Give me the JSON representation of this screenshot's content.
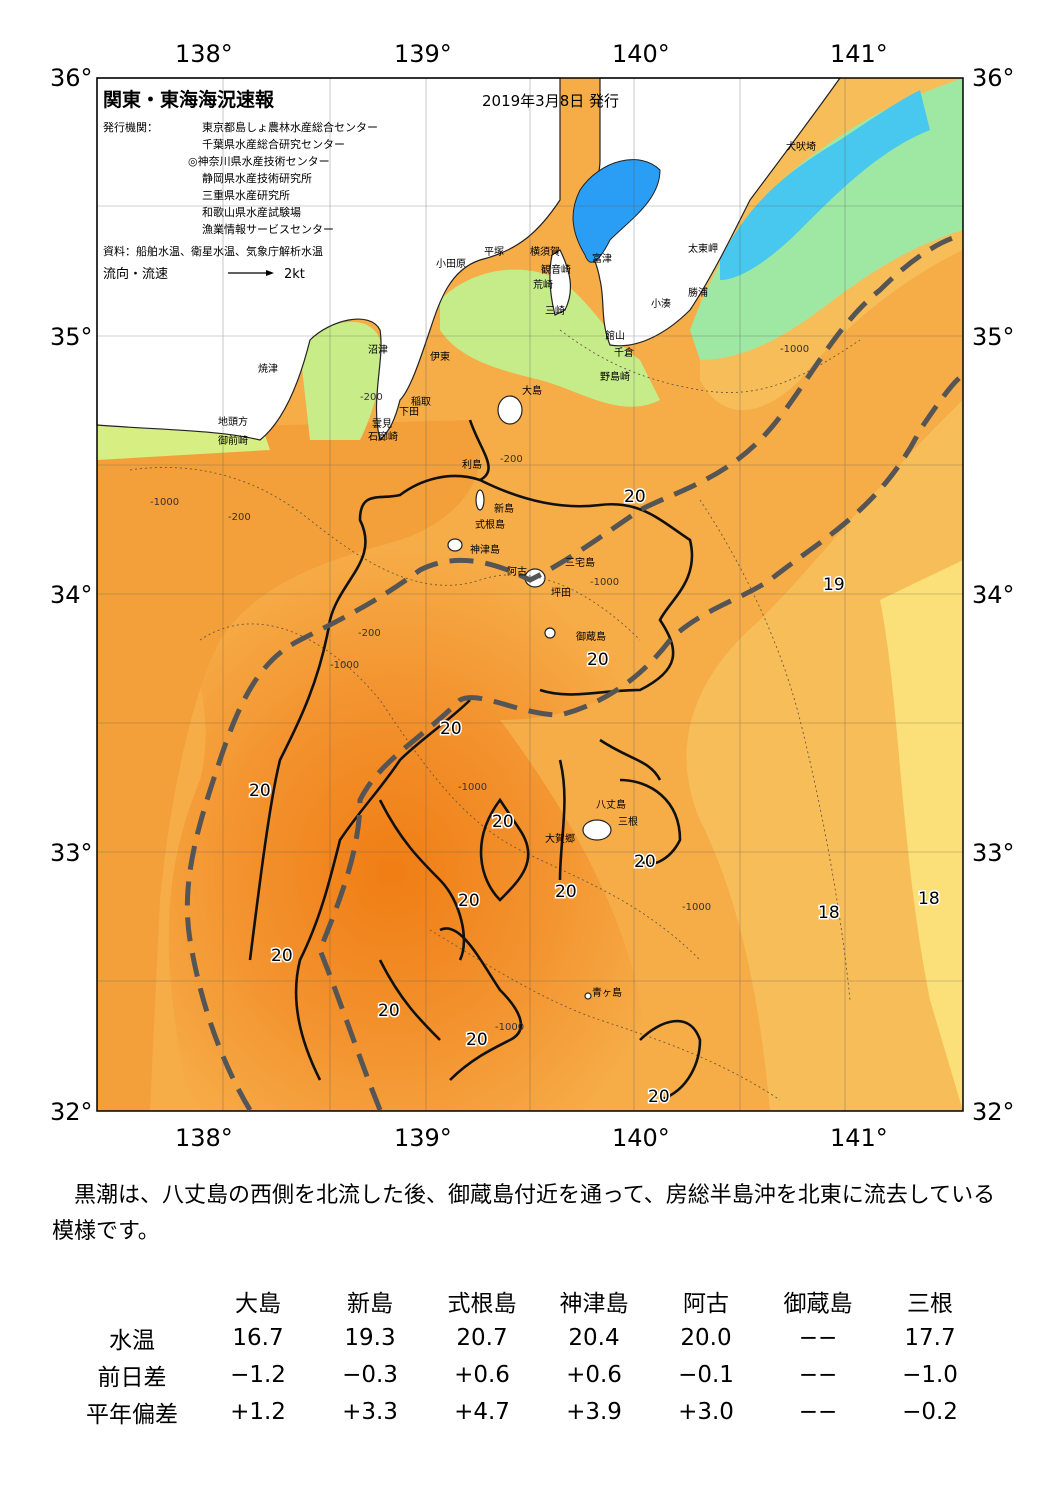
{
  "map": {
    "title": "関東・東海海況速報",
    "issue_date": "2019年3月8日 発行",
    "publisher_label": "発行機関：",
    "publishers": [
      "東京都島しょ農林水産総合センター",
      "千葉県水産総合研究センター",
      "◎神奈川県水産技術センター",
      "静岡県水産技術研究所",
      "三重県水産研究所",
      "和歌山県水産試験場",
      "漁業情報サービスセンター"
    ],
    "source": "資料：船舶水温、衛星水温、気象庁解析水温",
    "flow_legend": "流向・流速",
    "flow_scale": "2kt",
    "lon_labels": [
      "138°",
      "139°",
      "140°",
      "141°"
    ],
    "lat_labels": [
      "36°",
      "35°",
      "34°",
      "33°",
      "32°"
    ],
    "place_names": {
      "inubosaki": "犬吠埼",
      "taitomisaki": "太東岬",
      "katsuura": "勝浦",
      "kominato": "小湊",
      "tateyama": "館山",
      "chikura": "千倉",
      "nojimazaki": "野島崎",
      "futtsu": "富津",
      "yokosuka": "横須賀",
      "kannonzaki": "観音崎",
      "hiratsuka": "平塚",
      "odawara": "小田原",
      "aburatsubo": "荒崎",
      "misaki": "三崎",
      "numazu": "沼津",
      "ito": "伊東",
      "inatori": "稲取",
      "shimoda": "下田",
      "kumomi": "雲見",
      "irozaki": "石廊崎",
      "yaizu": "焼津",
      "jitokata": "地頭方",
      "omaezaki": "御前崎",
      "oshima": "大島",
      "toshima": "利島",
      "niijima": "新島",
      "shikinejima": "式根島",
      "kozushima": "神津島",
      "ako": "阿古",
      "miyakejima": "三宅島",
      "tsubota": "坪田",
      "mikurajima": "御蔵島",
      "hachijojima": "八丈島",
      "mine": "三根",
      "okago": "大賀郷",
      "aogashima": "青ヶ島"
    },
    "depth_labels": [
      "-200",
      "-1000"
    ],
    "isotherm_labels": [
      "20",
      "20",
      "20",
      "20",
      "20",
      "20",
      "20",
      "20",
      "20",
      "20",
      "20",
      "20",
      "20",
      "19",
      "18",
      "18"
    ]
  },
  "note": "黒潮は、八丈島の西側を北流した後、御蔵島付近を通って、房総半島沖を北東に流去している模様です。",
  "table": {
    "columns": [
      "大島",
      "新島",
      "式根島",
      "神津島",
      "阿古",
      "御蔵島",
      "三根"
    ],
    "rows": [
      {
        "label": "水温",
        "values": [
          "16.7",
          "19.3",
          "20.7",
          "20.4",
          "20.0",
          "−−",
          "17.7"
        ]
      },
      {
        "label": "前日差",
        "values": [
          "−1.2",
          "−0.3",
          "+0.6",
          "+0.6",
          "−0.1",
          "−−",
          "−1.0"
        ]
      },
      {
        "label": "平年偏差",
        "values": [
          "+1.2",
          "+3.3",
          "+4.7",
          "+3.9",
          "+3.0",
          "−−",
          "−0.2"
        ]
      }
    ]
  },
  "colors": {
    "warm": "#f28a1e",
    "mid": "#f5a33c",
    "cool": "#f8c860",
    "yellow": "#fbe57a",
    "green": "#8ee07a",
    "cyan": "#56d0ee",
    "blue": "#2a9df4",
    "land": "#ffffff",
    "kuroshio_axis": "#555555"
  }
}
